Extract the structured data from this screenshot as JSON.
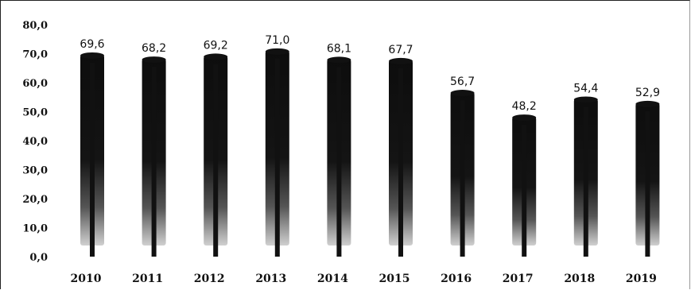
{
  "chart_data": {
    "type": "bar",
    "title": "",
    "xlabel": "",
    "ylabel": "",
    "categories": [
      "2010",
      "2011",
      "2012",
      "2013",
      "2014",
      "2015",
      "2016",
      "2017",
      "2018",
      "2019"
    ],
    "values": [
      69.6,
      68.2,
      69.2,
      71.0,
      68.1,
      67.7,
      56.7,
      48.2,
      54.4,
      52.9
    ],
    "value_labels": [
      "69,6",
      "68,2",
      "69,2",
      "71,0",
      "68,1",
      "67,7",
      "56,7",
      "48,2",
      "54,4",
      "52,9"
    ],
    "y_ticks": [
      "0,0",
      "10,0",
      "20,0",
      "30,0",
      "40,0",
      "50,0",
      "60,0",
      "70,0",
      "80,0"
    ],
    "ylim": [
      0,
      80
    ],
    "grid": false,
    "legend": "none",
    "bar_color": "#111111",
    "bar_fade_color": "#c8c8c8"
  }
}
